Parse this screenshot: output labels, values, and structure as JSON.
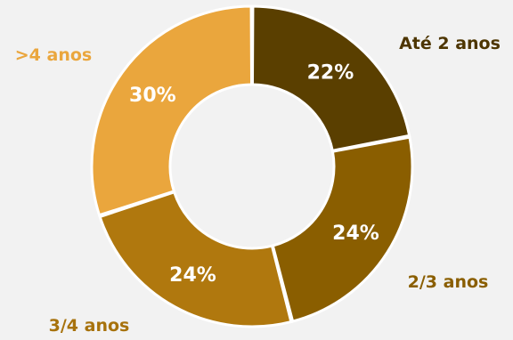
{
  "chart_data": {
    "type": "pie",
    "donut": true,
    "categories": [
      "Até 2 anos",
      "2/3 anos",
      "3/4 anos",
      ">4 anos"
    ],
    "values": [
      22,
      24,
      24,
      30
    ],
    "value_labels": [
      "22%",
      "24%",
      "24%",
      "30%"
    ],
    "colors": [
      "#5a3f00",
      "#8a5e00",
      "#b0780e",
      "#eaa63d"
    ],
    "label_colors": [
      "#4d3500",
      "#8a5e00",
      "#a7720c",
      "#eaa63d"
    ],
    "legend": "none"
  }
}
